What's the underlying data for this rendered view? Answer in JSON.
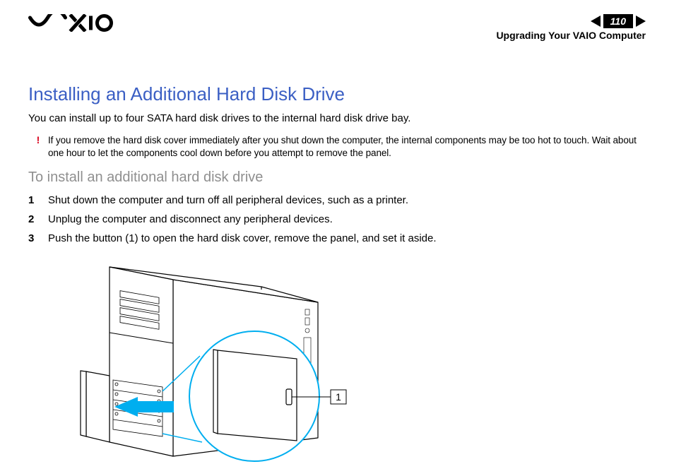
{
  "header": {
    "page_number": "110",
    "section": "Upgrading Your VAIO Computer",
    "nav_arrow_color": "#000000"
  },
  "colors": {
    "title": "#3b5fc4",
    "subheading": "#8f8f8f",
    "warn_mark": "#d9001b",
    "diagram_accent": "#00aeef",
    "diagram_line": "#000000",
    "text": "#000000"
  },
  "content": {
    "title": "Installing an Additional Hard Disk Drive",
    "intro": "You can install up to four SATA hard disk drives to the internal hard disk drive bay.",
    "warning_mark": "!",
    "warning_text": "If you remove the hard disk cover immediately after you shut down the computer, the internal components may be too hot to touch. Wait about one hour to let the components cool down before you attempt to remove the panel.",
    "subheading": "To install an additional hard disk drive",
    "steps": [
      {
        "n": "1",
        "text": "Shut down the computer and turn off all peripheral devices, such as a printer."
      },
      {
        "n": "2",
        "text": "Unplug the computer and disconnect any peripheral devices."
      },
      {
        "n": "3",
        "text": "Push the button (1) to open the hard disk cover, remove the panel, and set it aside."
      }
    ]
  },
  "figure": {
    "callout_label": "1"
  }
}
